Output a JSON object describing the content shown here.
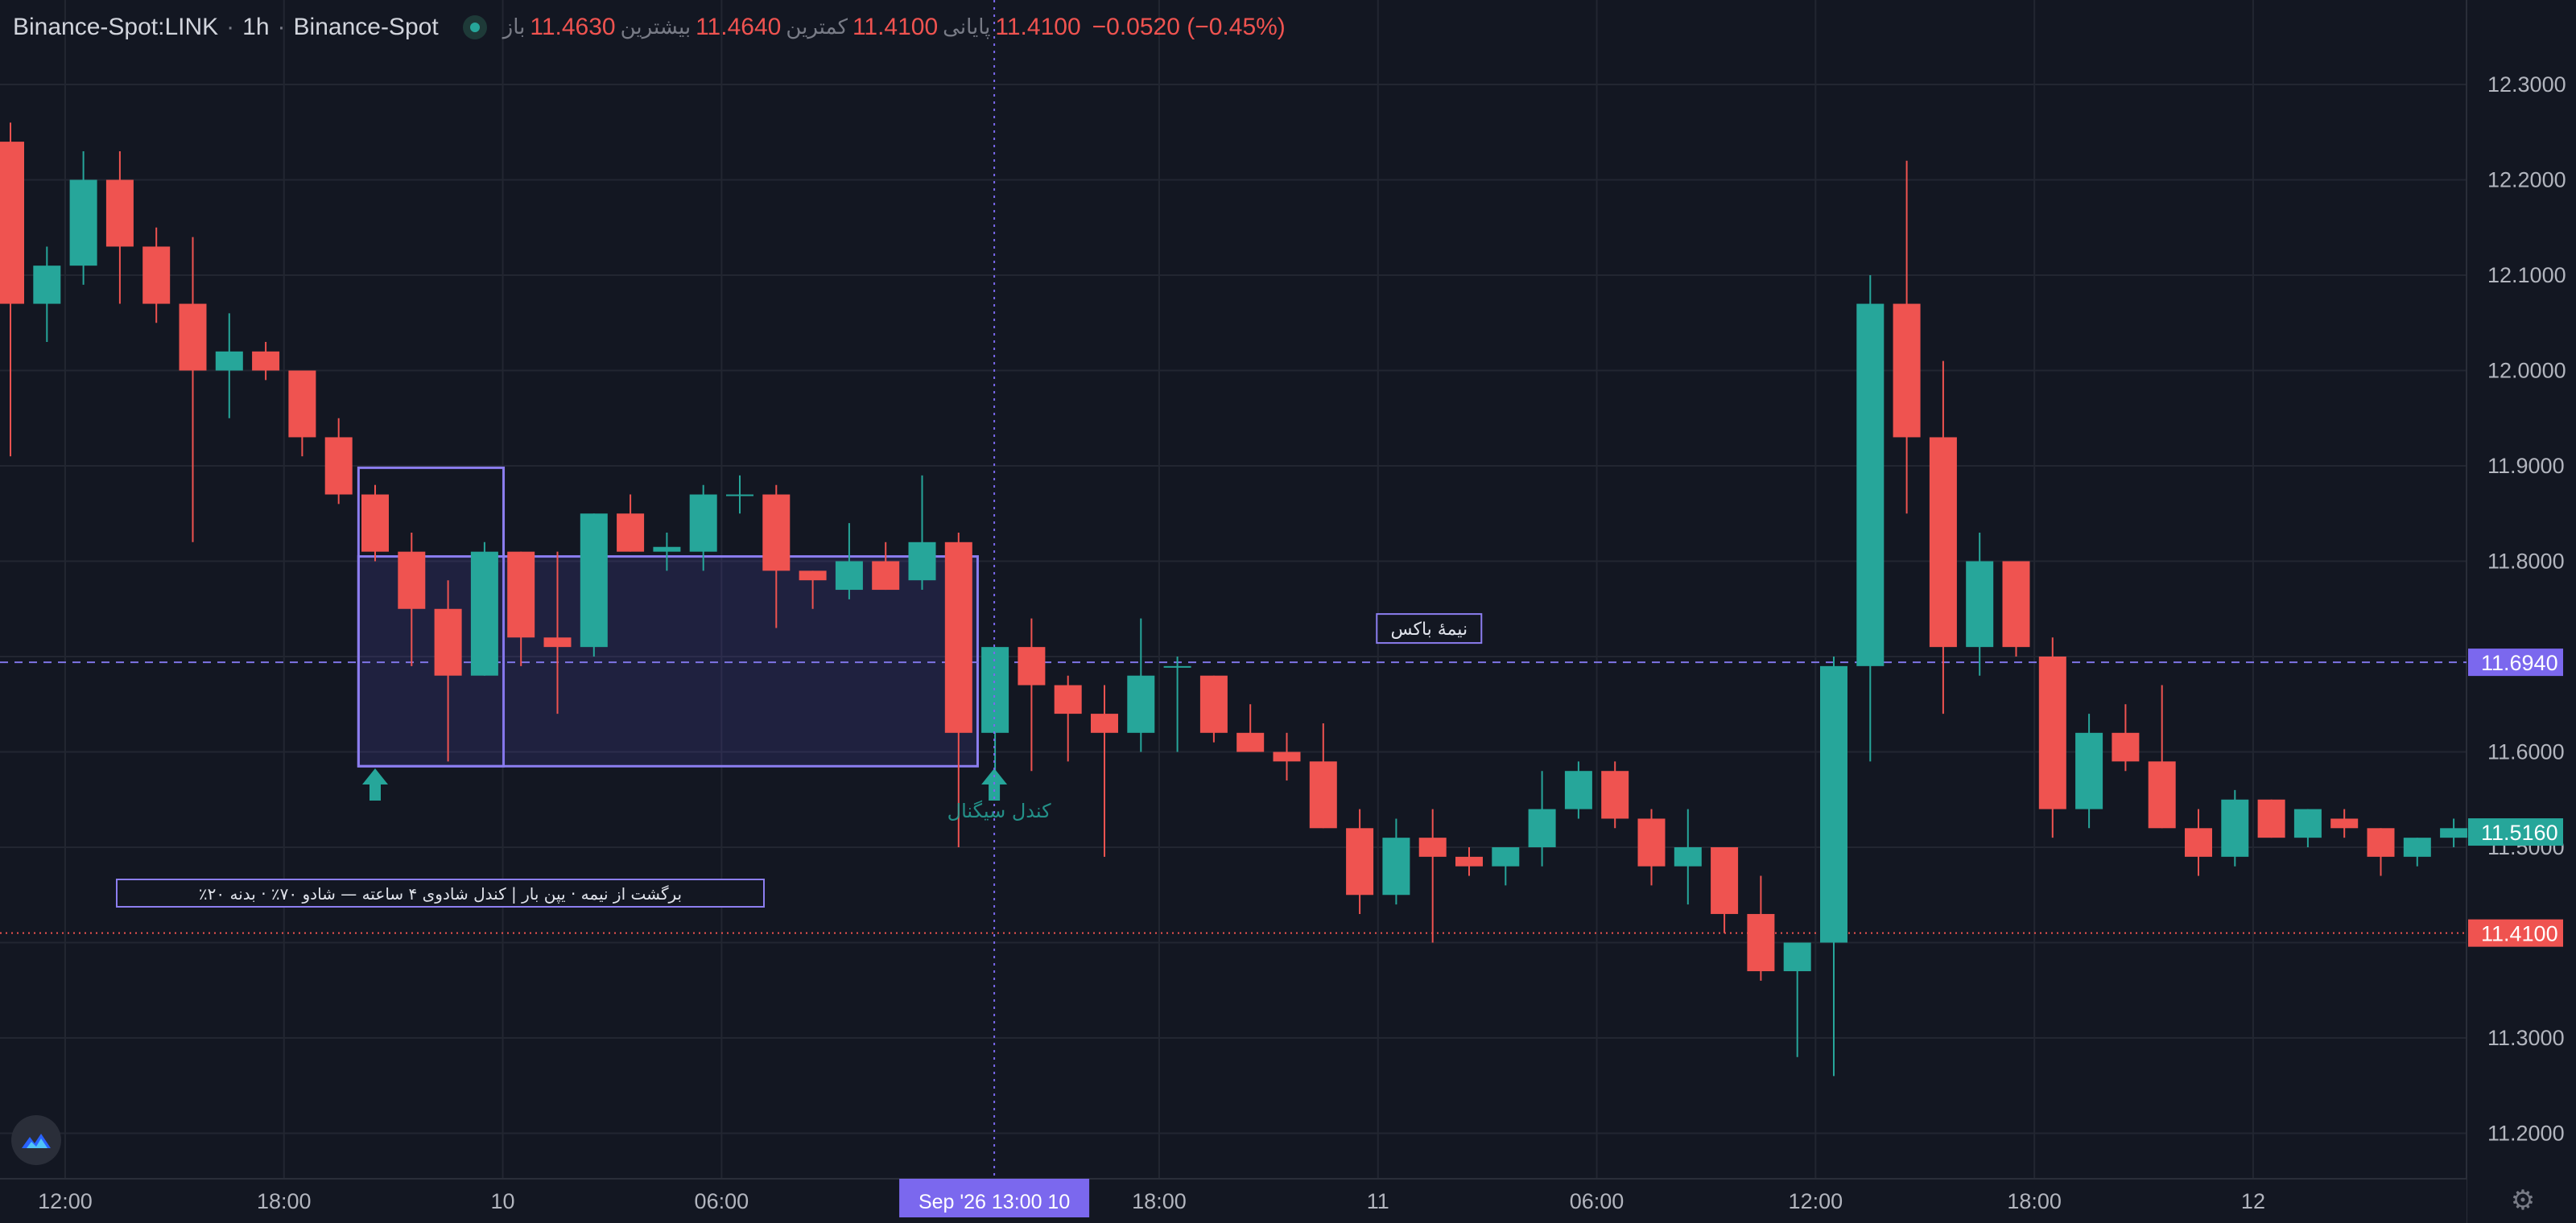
{
  "legend": {
    "symbol": "Binance-Spot:LINK",
    "interval": "1h",
    "exchange": "Binance-Spot",
    "open_label": "باز",
    "open": "11.4630",
    "high_label": "بیشترین",
    "high": "11.4640",
    "low_label": "کمترین",
    "low": "11.4100",
    "close_label": "پایانی",
    "close": "11.4100",
    "change": "−0.0520 (−0.45%)"
  },
  "colors": {
    "background": "#131722",
    "grid": "#222631",
    "up": "#26a69a",
    "down": "#ef5350",
    "accent": "#7b68ee",
    "text": "#b2b5be"
  },
  "icons": {
    "logo": "brand-logo-icon",
    "settings": "gear-icon",
    "signal": "up-arrow-icon"
  },
  "chart_data": {
    "type": "candlestick",
    "title": "",
    "xlabel": "",
    "ylabel": "",
    "ylim": [
      11.16,
      12.37
    ],
    "yticks": [
      "12.3000",
      "12.2000",
      "12.1000",
      "12.0000",
      "11.9000",
      "11.8000",
      "11.6000",
      "11.5000",
      "11.3000",
      "11.2000"
    ],
    "xticks": [
      {
        "bar": 1.5,
        "label": "12:00"
      },
      {
        "bar": 7.5,
        "label": "18:00"
      },
      {
        "bar": 13.5,
        "label": "10"
      },
      {
        "bar": 19.5,
        "label": "06:00"
      },
      {
        "bar": 31.5,
        "label": "18:00"
      },
      {
        "bar": 37.5,
        "label": "11"
      },
      {
        "bar": 43.5,
        "label": "06:00"
      },
      {
        "bar": 49.5,
        "label": "12:00"
      },
      {
        "bar": 55.5,
        "label": "18:00"
      },
      {
        "bar": 61.5,
        "label": "12"
      }
    ],
    "crosshair": {
      "bar": 27,
      "label": "Sep '26   13:00 10"
    },
    "price_labels": [
      {
        "price": 11.694,
        "label": "11.6940",
        "kind": "accent"
      },
      {
        "price": 11.516,
        "label": "11.5160",
        "kind": "up"
      },
      {
        "price": 11.41,
        "label": "11.4100",
        "kind": "down"
      }
    ],
    "midline": {
      "price": 11.694,
      "label": "نیمهٔ باکس"
    },
    "boxes": [
      {
        "from_bar": 10,
        "to_bar": 13,
        "top": 11.898,
        "bottom": 11.585,
        "filled": false
      },
      {
        "from_bar": 10,
        "to_bar": 26,
        "top": 11.805,
        "bottom": 11.585,
        "filled": true
      }
    ],
    "signals": [
      {
        "bar": 10,
        "label": ""
      },
      {
        "bar": 27,
        "label": "کندل سیگنال"
      }
    ],
    "info_box": "٪برگشت از نیمه · یپن بار | کندل شادوی ۴ ساعته — شادو ۷۰٪ · بدنه ۲۰",
    "candles": [
      {
        "o": 12.24,
        "h": 12.26,
        "l": 11.91,
        "c": 12.07
      },
      {
        "o": 12.07,
        "h": 12.13,
        "l": 12.03,
        "c": 12.11
      },
      {
        "o": 12.11,
        "h": 12.23,
        "l": 12.09,
        "c": 12.2
      },
      {
        "o": 12.2,
        "h": 12.23,
        "l": 12.07,
        "c": 12.13
      },
      {
        "o": 12.13,
        "h": 12.15,
        "l": 12.05,
        "c": 12.07
      },
      {
        "o": 12.07,
        "h": 12.14,
        "l": 11.82,
        "c": 12.0
      },
      {
        "o": 12.0,
        "h": 12.06,
        "l": 11.95,
        "c": 12.02
      },
      {
        "o": 12.02,
        "h": 12.03,
        "l": 11.99,
        "c": 12.0
      },
      {
        "o": 12.0,
        "h": 12.0,
        "l": 11.91,
        "c": 11.93
      },
      {
        "o": 11.93,
        "h": 11.95,
        "l": 11.86,
        "c": 11.87
      },
      {
        "o": 11.87,
        "h": 11.88,
        "l": 11.8,
        "c": 11.81
      },
      {
        "o": 11.81,
        "h": 11.83,
        "l": 11.69,
        "c": 11.75
      },
      {
        "o": 11.75,
        "h": 11.78,
        "l": 11.59,
        "c": 11.68
      },
      {
        "o": 11.68,
        "h": 11.82,
        "l": 11.68,
        "c": 11.81
      },
      {
        "o": 11.81,
        "h": 11.81,
        "l": 11.69,
        "c": 11.72
      },
      {
        "o": 11.72,
        "h": 11.81,
        "l": 11.64,
        "c": 11.71
      },
      {
        "o": 11.71,
        "h": 11.85,
        "l": 11.7,
        "c": 11.85
      },
      {
        "o": 11.85,
        "h": 11.87,
        "l": 11.81,
        "c": 11.81
      },
      {
        "o": 11.81,
        "h": 11.83,
        "l": 11.79,
        "c": 11.815
      },
      {
        "o": 11.81,
        "h": 11.88,
        "l": 11.79,
        "c": 11.87
      },
      {
        "o": 11.87,
        "h": 11.89,
        "l": 11.85,
        "c": 11.87
      },
      {
        "o": 11.87,
        "h": 11.88,
        "l": 11.73,
        "c": 11.79
      },
      {
        "o": 11.79,
        "h": 11.79,
        "l": 11.75,
        "c": 11.78
      },
      {
        "o": 11.77,
        "h": 11.84,
        "l": 11.76,
        "c": 11.8
      },
      {
        "o": 11.8,
        "h": 11.82,
        "l": 11.77,
        "c": 11.77
      },
      {
        "o": 11.78,
        "h": 11.89,
        "l": 11.77,
        "c": 11.82
      },
      {
        "o": 11.82,
        "h": 11.83,
        "l": 11.5,
        "c": 11.62
      },
      {
        "o": 11.62,
        "h": 11.71,
        "l": 11.58,
        "c": 11.71
      },
      {
        "o": 11.71,
        "h": 11.74,
        "l": 11.58,
        "c": 11.67
      },
      {
        "o": 11.67,
        "h": 11.68,
        "l": 11.59,
        "c": 11.64
      },
      {
        "o": 11.64,
        "h": 11.67,
        "l": 11.49,
        "c": 11.62
      },
      {
        "o": 11.62,
        "h": 11.74,
        "l": 11.6,
        "c": 11.68
      },
      {
        "o": 11.69,
        "h": 11.7,
        "l": 11.6,
        "c": 11.69
      },
      {
        "o": 11.68,
        "h": 11.68,
        "l": 11.61,
        "c": 11.62
      },
      {
        "o": 11.62,
        "h": 11.65,
        "l": 11.6,
        "c": 11.6
      },
      {
        "o": 11.6,
        "h": 11.62,
        "l": 11.57,
        "c": 11.59
      },
      {
        "o": 11.59,
        "h": 11.63,
        "l": 11.52,
        "c": 11.52
      },
      {
        "o": 11.52,
        "h": 11.54,
        "l": 11.43,
        "c": 11.45
      },
      {
        "o": 11.45,
        "h": 11.53,
        "l": 11.44,
        "c": 11.51
      },
      {
        "o": 11.51,
        "h": 11.54,
        "l": 11.4,
        "c": 11.49
      },
      {
        "o": 11.49,
        "h": 11.5,
        "l": 11.47,
        "c": 11.48
      },
      {
        "o": 11.48,
        "h": 11.5,
        "l": 11.46,
        "c": 11.5
      },
      {
        "o": 11.5,
        "h": 11.58,
        "l": 11.48,
        "c": 11.54
      },
      {
        "o": 11.54,
        "h": 11.59,
        "l": 11.53,
        "c": 11.58
      },
      {
        "o": 11.58,
        "h": 11.59,
        "l": 11.52,
        "c": 11.53
      },
      {
        "o": 11.53,
        "h": 11.54,
        "l": 11.46,
        "c": 11.48
      },
      {
        "o": 11.48,
        "h": 11.54,
        "l": 11.44,
        "c": 11.5
      },
      {
        "o": 11.5,
        "h": 11.5,
        "l": 11.41,
        "c": 11.43
      },
      {
        "o": 11.43,
        "h": 11.47,
        "l": 11.36,
        "c": 11.37
      },
      {
        "o": 11.37,
        "h": 11.4,
        "l": 11.28,
        "c": 11.4
      },
      {
        "o": 11.4,
        "h": 11.7,
        "l": 11.26,
        "c": 11.69
      },
      {
        "o": 11.69,
        "h": 12.1,
        "l": 11.59,
        "c": 12.07
      },
      {
        "o": 12.07,
        "h": 12.22,
        "l": 11.85,
        "c": 11.93
      },
      {
        "o": 11.93,
        "h": 12.01,
        "l": 11.64,
        "c": 11.71
      },
      {
        "o": 11.71,
        "h": 11.83,
        "l": 11.68,
        "c": 11.8
      },
      {
        "o": 11.8,
        "h": 11.8,
        "l": 11.7,
        "c": 11.71
      },
      {
        "o": 11.7,
        "h": 11.72,
        "l": 11.51,
        "c": 11.54
      },
      {
        "o": 11.54,
        "h": 11.64,
        "l": 11.52,
        "c": 11.62
      },
      {
        "o": 11.62,
        "h": 11.65,
        "l": 11.58,
        "c": 11.59
      },
      {
        "o": 11.59,
        "h": 11.67,
        "l": 11.52,
        "c": 11.52
      },
      {
        "o": 11.52,
        "h": 11.54,
        "l": 11.47,
        "c": 11.49
      },
      {
        "o": 11.49,
        "h": 11.56,
        "l": 11.48,
        "c": 11.55
      },
      {
        "o": 11.55,
        "h": 11.55,
        "l": 11.51,
        "c": 11.51
      },
      {
        "o": 11.51,
        "h": 11.54,
        "l": 11.5,
        "c": 11.54
      },
      {
        "o": 11.53,
        "h": 11.54,
        "l": 11.51,
        "c": 11.52
      },
      {
        "o": 11.52,
        "h": 11.52,
        "l": 11.47,
        "c": 11.49
      },
      {
        "o": 11.49,
        "h": 11.51,
        "l": 11.48,
        "c": 11.51
      },
      {
        "o": 11.51,
        "h": 11.53,
        "l": 11.5,
        "c": 11.52
      }
    ]
  }
}
